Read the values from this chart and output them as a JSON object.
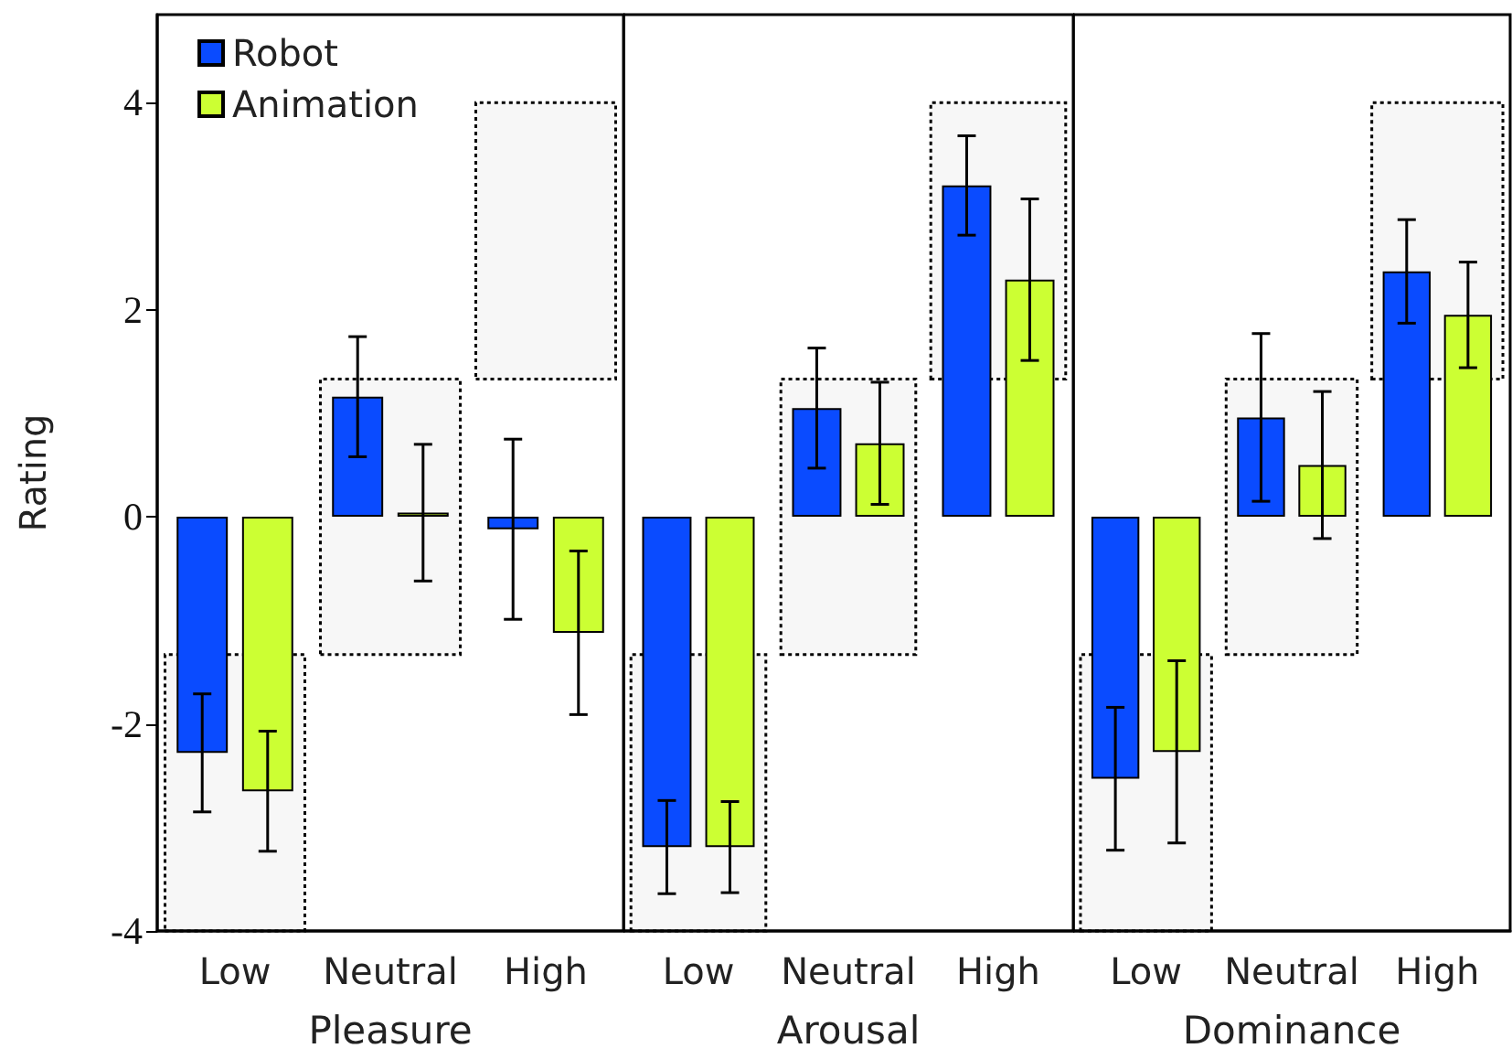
{
  "chart_data": [
    {
      "type": "bar",
      "xlabel": "Pleasure",
      "ylabel": "Rating",
      "categories": [
        "Low",
        "Neutral",
        "High"
      ],
      "ylim": [
        -4,
        4.85
      ],
      "yticks": [
        -4,
        -2,
        0,
        2,
        4
      ],
      "grid": false,
      "legend": "top left",
      "series": [
        {
          "name": "Robot",
          "color": "#0a4bff",
          "values": [
            -2.28,
            1.16,
            -0.12
          ],
          "errors": [
            0.57,
            0.58,
            0.87
          ]
        },
        {
          "name": "Animation",
          "color": "#ccff33",
          "values": [
            -2.65,
            0.04,
            -1.12
          ],
          "errors": [
            0.58,
            0.66,
            0.79
          ]
        }
      ],
      "bands": [
        {
          "axis": "y",
          "from": -4,
          "to": -1.33
        },
        {
          "axis": "y",
          "from": -1.33,
          "to": 1.33
        },
        {
          "axis": "y",
          "from": 1.33,
          "to": 4
        }
      ]
    },
    {
      "type": "bar",
      "xlabel": "Arousal",
      "categories": [
        "Low",
        "Neutral",
        "High"
      ],
      "ylim": [
        -4,
        4.85
      ],
      "yticks": [
        -4,
        -2,
        0,
        2,
        4
      ],
      "grid": false,
      "tick_labels": "x",
      "series": [
        {
          "color": "#0a4bff",
          "values": [
            -3.19,
            1.05,
            3.2
          ],
          "errors": [
            0.45,
            0.58,
            0.48
          ]
        },
        {
          "color": "#ccff33",
          "values": [
            -3.19,
            0.71,
            2.29
          ],
          "errors": [
            0.44,
            0.59,
            0.78
          ]
        }
      ],
      "bands": [
        {
          "axis": "y",
          "from": -4,
          "to": -1.33
        },
        {
          "axis": "y",
          "from": -1.33,
          "to": 1.33
        },
        {
          "axis": "y",
          "from": 1.33,
          "to": 4
        }
      ]
    },
    {
      "type": "bar",
      "xlabel": "Dominance",
      "categories": [
        "Low",
        "Neutral",
        "High"
      ],
      "ylim": [
        -4,
        4.85
      ],
      "yticks": [
        -4,
        -2,
        0,
        2,
        4
      ],
      "grid": false,
      "tick_labels": "x",
      "series": [
        {
          "color": "#0a4bff",
          "values": [
            -2.53,
            0.96,
            2.37
          ],
          "errors": [
            0.69,
            0.81,
            0.5
          ]
        },
        {
          "color": "#ccff33",
          "values": [
            -2.27,
            0.5,
            1.95
          ],
          "errors": [
            0.88,
            0.71,
            0.51
          ]
        }
      ],
      "bands": [
        {
          "axis": "y",
          "from": -4,
          "to": -1.33
        },
        {
          "axis": "y",
          "from": -1.33,
          "to": 1.33
        },
        {
          "axis": "y",
          "from": 1.33,
          "to": 4
        }
      ]
    }
  ]
}
